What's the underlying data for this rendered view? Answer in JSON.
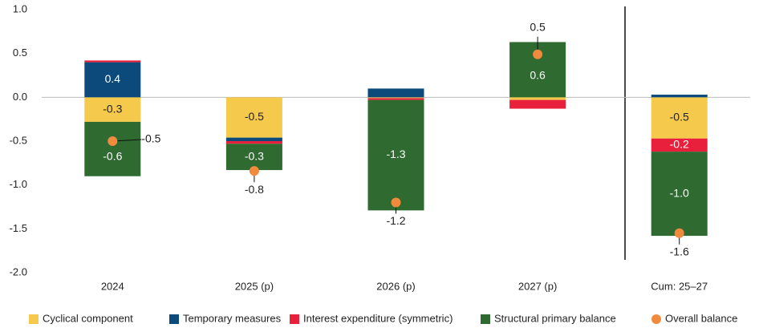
{
  "chart_data": {
    "type": "bar",
    "stacked": true,
    "categories": [
      "2024",
      "2025 (p)",
      "2026 (p)",
      "2027 (p)",
      "Cum: 25–27"
    ],
    "ylim": [
      -2.0,
      1.0
    ],
    "yticks": [
      {
        "value": 1,
        "label": "1.0"
      },
      {
        "value": 0.5,
        "label": "0.5"
      },
      {
        "value": 0,
        "label": "0.0"
      },
      {
        "value": -0.5,
        "label": "-0.5"
      },
      {
        "value": -1,
        "label": "-1.0"
      },
      {
        "value": -1.5,
        "label": "-1.5"
      },
      {
        "value": -2,
        "label": "-2.0"
      }
    ],
    "series": [
      {
        "name": "Cyclical component",
        "color": "#f5c94c",
        "values": [
          -0.28,
          -0.46,
          -0.01,
          -0.03,
          -0.47
        ],
        "value_labels": [
          "-0.3",
          "-0.5",
          null,
          null,
          "-0.5"
        ]
      },
      {
        "name": "Temporary measures",
        "color": "#0d4a7c",
        "values": [
          0.4,
          -0.04,
          0.1,
          0.0,
          0.03
        ],
        "value_labels": [
          "0.4",
          null,
          null,
          null,
          null
        ]
      },
      {
        "name": "Interest expenditure (symmetric)",
        "color": "#e8203c",
        "values": [
          0.02,
          -0.03,
          -0.02,
          -0.1,
          -0.15
        ],
        "value_labels": [
          null,
          null,
          null,
          null,
          "-0.2"
        ]
      },
      {
        "name": "Structural primary balance",
        "color": "#2f6a31",
        "values": [
          -0.62,
          -0.3,
          -1.26,
          0.63,
          -0.96
        ],
        "value_labels": [
          "-0.6",
          "-0.3",
          "-1.3",
          "0.6",
          "-1.0"
        ]
      },
      {
        "name": "Overall balance",
        "type": "scatter",
        "color": "#f08a3c",
        "values": [
          -0.5,
          -0.84,
          -1.2,
          0.49,
          -1.55
        ],
        "value_labels": [
          "-0.5",
          "-0.8",
          "-1.2",
          "0.5",
          "-1.6"
        ]
      }
    ]
  }
}
